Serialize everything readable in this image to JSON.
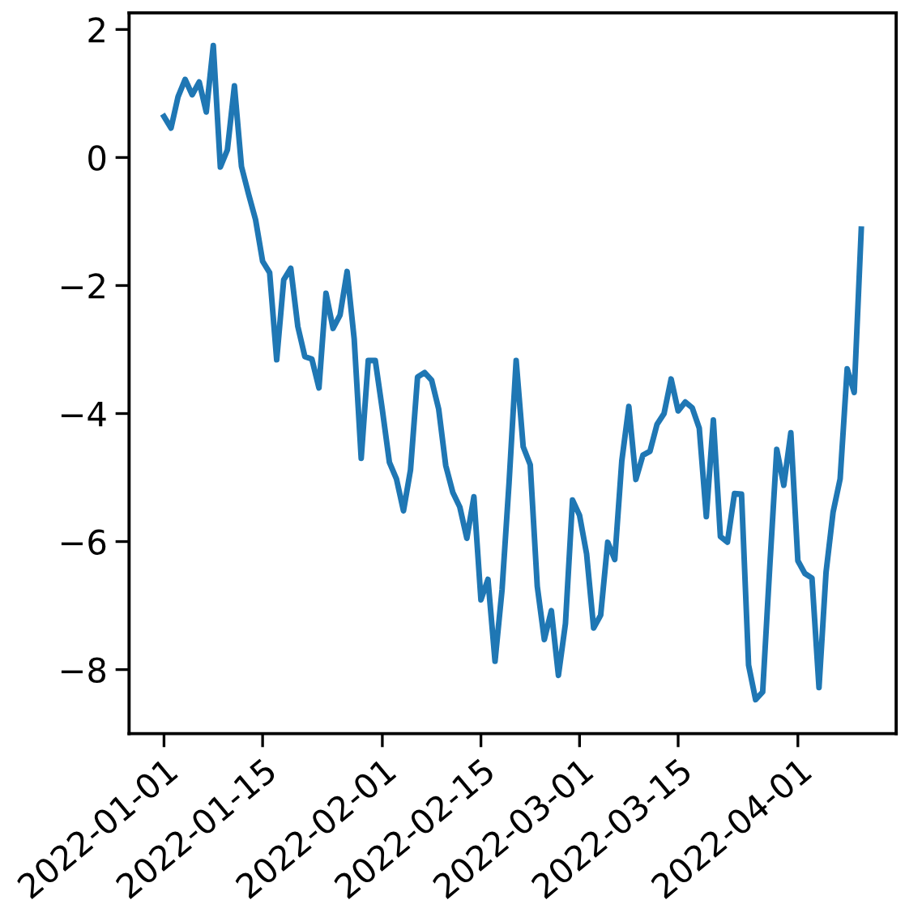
{
  "chart_data": {
    "type": "line",
    "x": [
      "2022-01-01",
      "2022-01-02",
      "2022-01-03",
      "2022-01-04",
      "2022-01-05",
      "2022-01-06",
      "2022-01-07",
      "2022-01-08",
      "2022-01-09",
      "2022-01-10",
      "2022-01-11",
      "2022-01-12",
      "2022-01-13",
      "2022-01-14",
      "2022-01-15",
      "2022-01-16",
      "2022-01-17",
      "2022-01-18",
      "2022-01-19",
      "2022-01-20",
      "2022-01-21",
      "2022-01-22",
      "2022-01-23",
      "2022-01-24",
      "2022-01-25",
      "2022-01-26",
      "2022-01-27",
      "2022-01-28",
      "2022-01-29",
      "2022-01-30",
      "2022-01-31",
      "2022-02-01",
      "2022-02-02",
      "2022-02-03",
      "2022-02-04",
      "2022-02-05",
      "2022-02-06",
      "2022-02-07",
      "2022-02-08",
      "2022-02-09",
      "2022-02-10",
      "2022-02-11",
      "2022-02-12",
      "2022-02-13",
      "2022-02-14",
      "2022-02-15",
      "2022-02-16",
      "2022-02-17",
      "2022-02-18",
      "2022-02-19",
      "2022-02-20",
      "2022-02-21",
      "2022-02-22",
      "2022-02-23",
      "2022-02-24",
      "2022-02-25",
      "2022-02-26",
      "2022-02-27",
      "2022-02-28",
      "2022-03-01",
      "2022-03-02",
      "2022-03-03",
      "2022-03-04",
      "2022-03-05",
      "2022-03-06",
      "2022-03-07",
      "2022-03-08",
      "2022-03-09",
      "2022-03-10",
      "2022-03-11",
      "2022-03-12",
      "2022-03-13",
      "2022-03-14",
      "2022-03-15",
      "2022-03-16",
      "2022-03-17",
      "2022-03-18",
      "2022-03-19",
      "2022-03-20",
      "2022-03-21",
      "2022-03-22",
      "2022-03-23",
      "2022-03-24",
      "2022-03-25",
      "2022-03-26",
      "2022-03-27",
      "2022-03-28",
      "2022-03-29",
      "2022-03-30",
      "2022-03-31",
      "2022-04-01",
      "2022-04-02",
      "2022-04-03",
      "2022-04-04",
      "2022-04-05",
      "2022-04-06",
      "2022-04-07",
      "2022-04-08",
      "2022-04-09",
      "2022-04-10"
    ],
    "series": [
      {
        "color": "#1f77b4",
        "values": [
          0.64,
          0.46,
          0.95,
          1.22,
          0.98,
          1.18,
          0.71,
          1.75,
          -0.15,
          0.12,
          1.12,
          -0.14,
          -0.57,
          -0.97,
          -1.62,
          -1.8,
          -3.16,
          -1.91,
          -1.73,
          -2.64,
          -3.11,
          -3.15,
          -3.6,
          -2.12,
          -2.67,
          -2.46,
          -1.78,
          -2.83,
          -4.7,
          -3.17,
          -3.17,
          -3.94,
          -4.76,
          -5.02,
          -5.52,
          -4.88,
          -3.43,
          -3.36,
          -3.48,
          -3.93,
          -4.81,
          -5.23,
          -5.46,
          -5.95,
          -5.3,
          -6.91,
          -6.59,
          -7.87,
          -6.75,
          -5.07,
          -3.17,
          -4.52,
          -4.8,
          -6.7,
          -7.53,
          -7.08,
          -8.09,
          -7.28,
          -5.35,
          -5.59,
          -6.19,
          -7.35,
          -7.15,
          -6.01,
          -6.28,
          -4.74,
          -3.89,
          -5.03,
          -4.65,
          -4.59,
          -4.17,
          -4.0,
          -3.46,
          -3.96,
          -3.82,
          -3.91,
          -4.23,
          -5.61,
          -4.1,
          -5.92,
          -6.01,
          -5.25,
          -5.26,
          -7.93,
          -8.47,
          -8.35,
          -6.41,
          -4.56,
          -5.12,
          -4.3,
          -6.3,
          -6.5,
          -6.57,
          -8.28,
          -6.48,
          -5.54,
          -5.02,
          -3.3,
          -3.67,
          -1.12
        ]
      }
    ],
    "xlim": [
      "2021-12-27T01:00",
      "2022-04-14T23:00"
    ],
    "xticks": [
      "2022-01-01",
      "2022-01-15",
      "2022-02-01",
      "2022-02-15",
      "2022-03-01",
      "2022-03-15",
      "2022-04-01"
    ],
    "ylim": [
      -9.0,
      2.26
    ],
    "yticks": [
      {
        "value": -8,
        "label": "−8"
      },
      {
        "value": -6,
        "label": "−6"
      },
      {
        "value": -4,
        "label": "−4"
      },
      {
        "value": -2,
        "label": "−2"
      },
      0,
      2
    ],
    "grid": false,
    "legend": false,
    "marker": "none",
    "line_style": "solid"
  }
}
